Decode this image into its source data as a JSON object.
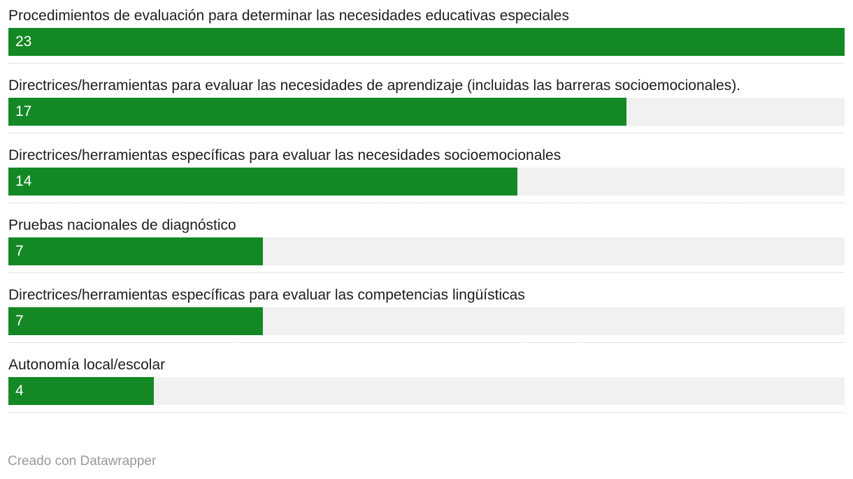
{
  "chart_data": {
    "type": "bar",
    "orientation": "horizontal",
    "categories": [
      "Procedimientos de evaluación para determinar las necesidades educativas especiales",
      "Directrices/herramientas para evaluar las necesidades de aprendizaje (incluidas las barreras socioemocionales).",
      "Directrices/herramientas específicas para evaluar las necesidades socioemocionales",
      "Pruebas nacionales de diagnóstico",
      "Directrices/herramientas específicas para evaluar las competencias lingüísticas",
      "Autonomía local/escolar"
    ],
    "values": [
      23,
      17,
      14,
      7,
      7,
      4
    ],
    "xlim": [
      0,
      23
    ],
    "bar_color": "#148825",
    "track_color": "#f1f1f1",
    "grid": false
  },
  "footer": {
    "credit": "Creado con Datawrapper"
  }
}
